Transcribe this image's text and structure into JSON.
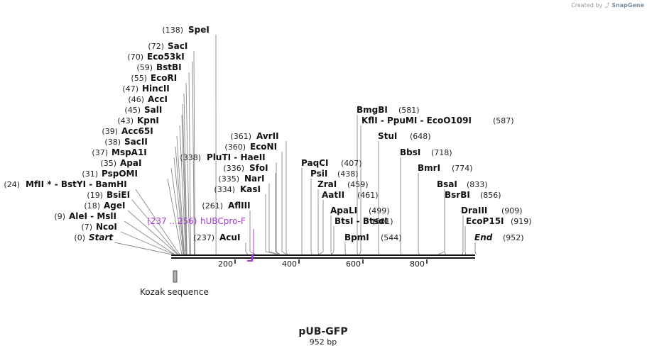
{
  "watermark": {
    "prefix": "Created by",
    "brand": "SnapGene"
  },
  "plasmid": {
    "name": "pUB-GFP",
    "length_label": "952 bp",
    "length": 952
  },
  "colors": {
    "primer": "#a437d8",
    "line": "#888888",
    "backbone": "#111111",
    "feature": "#b0b0b8"
  },
  "sites": [
    {
      "pos": "(138)",
      "name": "SpeI",
      "coord": 138
    },
    {
      "pos": "(72)",
      "name": "SacI",
      "coord": 72
    },
    {
      "pos": "(70)",
      "name": "Eco53kI",
      "coord": 70
    },
    {
      "pos": "(59)",
      "name": "BstBI",
      "coord": 59
    },
    {
      "pos": "(55)",
      "name": "EcoRI",
      "coord": 55
    },
    {
      "pos": "(47)",
      "name": "HincII",
      "coord": 47
    },
    {
      "pos": "(46)",
      "name": "AccI",
      "coord": 46
    },
    {
      "pos": "(45)",
      "name": "SalI",
      "coord": 45
    },
    {
      "pos": "(43)",
      "name": "KpnI",
      "coord": 43
    },
    {
      "pos": "(39)",
      "name": "Acc65I",
      "coord": 39
    },
    {
      "pos": "(38)",
      "name": "SacII",
      "coord": 38
    },
    {
      "pos": "(37)",
      "name": "MspA1I",
      "coord": 37
    },
    {
      "pos": "(35)",
      "name": "ApaI",
      "coord": 35
    },
    {
      "pos": "(31)",
      "name": "PspOMI",
      "coord": 31
    },
    {
      "pos": "(24)",
      "name": "MfII * - BstYI - BamHI",
      "coord": 24
    },
    {
      "pos": "(19)",
      "name": "BsiEI",
      "coord": 19
    },
    {
      "pos": "(18)",
      "name": "AgeI",
      "coord": 18
    },
    {
      "pos": "(9)",
      "name": "AleI - MslI",
      "coord": 9
    },
    {
      "pos": "(7)",
      "name": "NcoI",
      "coord": 7
    },
    {
      "pos": "(0)",
      "name": "Start",
      "coord": 0,
      "italic": true
    },
    {
      "pos": "(338)",
      "name": "PluTI - HaeII",
      "coord": 338
    },
    {
      "pos": "(336)",
      "name": "SfoI",
      "coord": 336
    },
    {
      "pos": "(335)",
      "name": "NarI",
      "coord": 335
    },
    {
      "pos": "(334)",
      "name": "KasI",
      "coord": 334
    },
    {
      "pos": "(261)",
      "name": "AflIII",
      "coord": 261
    },
    {
      "pos": "(237)",
      "name": "AcuI",
      "coord": 237
    },
    {
      "pos": "(361)",
      "name": "AvrII",
      "coord": 361
    },
    {
      "pos": "(360)",
      "name": "EcoNI",
      "coord": 360
    },
    {
      "pos": "(407)",
      "name": "PaqCI",
      "coord": 407
    },
    {
      "pos": "(438)",
      "name": "PsiI",
      "coord": 438
    },
    {
      "pos": "(459)",
      "name": "ZraI",
      "coord": 459
    },
    {
      "pos": "(461)",
      "name": "AatII",
      "coord": 461
    },
    {
      "pos": "(499)",
      "name": "ApaLI",
      "coord": 499
    },
    {
      "pos": "(501)",
      "name": "BtsI - BtsαI",
      "coord": 501
    },
    {
      "pos": "(544)",
      "name": "BpmI",
      "coord": 544
    },
    {
      "pos": "(581)",
      "name": "BmgBI",
      "coord": 581
    },
    {
      "pos": "(587)",
      "name": "KflI - PpuMI - EcoO109I",
      "coord": 587
    },
    {
      "pos": "(648)",
      "name": "StuI",
      "coord": 648
    },
    {
      "pos": "(718)",
      "name": "BbsI",
      "coord": 718
    },
    {
      "pos": "(774)",
      "name": "BmrI",
      "coord": 774
    },
    {
      "pos": "(833)",
      "name": "BsaI",
      "coord": 833
    },
    {
      "pos": "(856)",
      "name": "BsrBI",
      "coord": 856
    },
    {
      "pos": "(909)",
      "name": "DraIII",
      "coord": 909
    },
    {
      "pos": "(919)",
      "name": "EcoP15I",
      "coord": 919
    },
    {
      "pos": "(952)",
      "name": "End",
      "coord": 952,
      "italic": true
    }
  ],
  "primer": {
    "range": "(237 .. 256)",
    "name": "hUBCpro-F",
    "start": 237,
    "end": 256
  },
  "feature": {
    "name": "Kozak sequence"
  },
  "ticks": [
    "200",
    "400",
    "600",
    "800"
  ]
}
